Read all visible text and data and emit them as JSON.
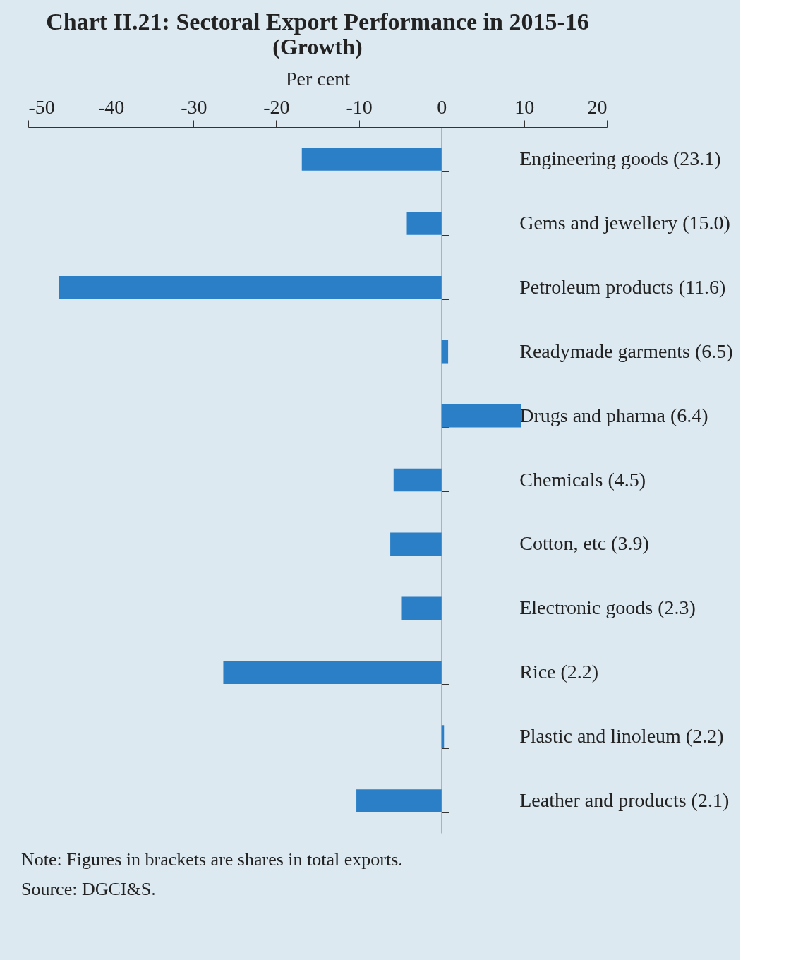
{
  "chart_data": {
    "type": "bar",
    "orientation": "horizontal",
    "title": "Chart II.21: Sectoral Export Performance in 2015-16",
    "subtitle": "(Growth)",
    "xlabel": "Per cent",
    "categories": [
      "Engineering goods (23.1)",
      "Gems and jewellery (15.0)",
      "Petroleum products (11.6)",
      "Readymade garments (6.5)",
      "Drugs and pharma (6.4)",
      "Chemicals (4.5)",
      "Cotton, etc (3.9)",
      "Electronic goods (2.3)",
      "Rice (2.2)",
      "Plastic and linoleum (2.2)",
      "Leather and products (2.1)"
    ],
    "values": [
      -16.9,
      -4.2,
      -46.3,
      0.8,
      9.6,
      -5.8,
      -6.2,
      -4.8,
      -26.4,
      0.3,
      -10.3
    ],
    "color": "#2a7fc6",
    "xlim": [
      -50,
      20
    ],
    "xticks": [
      -50,
      -40,
      -30,
      -20,
      -10,
      0,
      10,
      20
    ],
    "annotations": [
      "Note: Figures in brackets are shares in total exports.",
      "Source: DGCI&S."
    ]
  }
}
